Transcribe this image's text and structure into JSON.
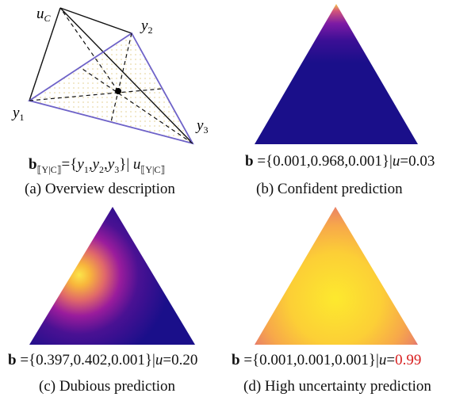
{
  "panels": [
    {
      "vertex_labels": {
        "uc": "u",
        "uc_sub": "C",
        "y2": "y",
        "y2_sub": "2",
        "y1": "y",
        "y1_sub": "1",
        "y3": "y",
        "y3_sub": "3"
      },
      "formula": {
        "b": "b",
        "b_sub": "⟦Y|C⟧",
        "eq": "={",
        "y1": "y",
        "y1_sub": "1",
        "c1": ",",
        "y2": "y",
        "y2_sub": "2",
        "c2": ",",
        "y3": "y",
        "y3_sub": "3",
        "close": "}|",
        "u": "u",
        "u_sub": "⟦Y|C⟧"
      },
      "caption": "(a) Overview description"
    },
    {
      "heatmap": {
        "peak": "top",
        "base_color": "#1a0f8a",
        "peak_color": "#f7c84a"
      },
      "formula": {
        "b": "b",
        "eq": " ={",
        "values": "0.001,0.968,0.001",
        "close": "}|",
        "u": "u",
        "u_eq": "=",
        "u_value": "0.03"
      },
      "caption": "(b) Confident prediction"
    },
    {
      "heatmap": {
        "peak": "left-middle",
        "base_color": "#1a0f8a",
        "peak_color": "#fbe54a"
      },
      "formula": {
        "b": "b",
        "eq": " ={",
        "values": "0.397,0.402,0.001",
        "close": "}|",
        "u": "u",
        "u_eq": "=",
        "u_value": "0.20"
      },
      "caption": "(c) Dubious prediction"
    },
    {
      "heatmap": {
        "peak": "center",
        "edge_color": "#d96a86",
        "peak_color": "#fde92e"
      },
      "formula": {
        "b": "b",
        "eq": " ={",
        "values": "0.001,0.001,0.001",
        "close": "}|",
        "u": "u",
        "u_eq": "=",
        "u_value": "0.99"
      },
      "caption": "(d) High uncertainty prediction"
    }
  ],
  "colors": {
    "simplex_edge": "#6e62c8",
    "highlight": "#d81e1e"
  }
}
